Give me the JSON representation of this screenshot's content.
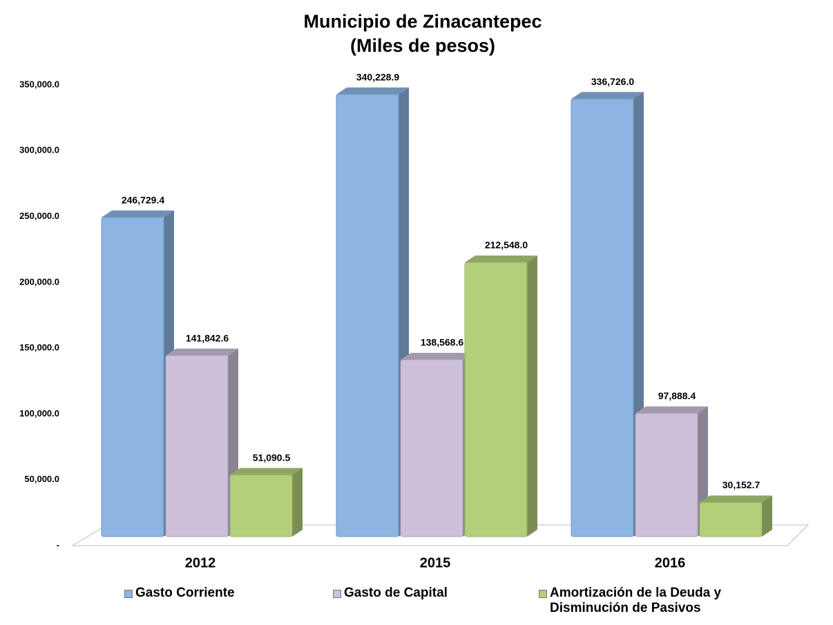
{
  "chart_data": {
    "type": "bar",
    "title": "Municipio de  Zinacantepec",
    "subtitle": "(Miles de pesos)",
    "categories": [
      "2012",
      "2015",
      "2016"
    ],
    "series": [
      {
        "name": "Gasto Corriente",
        "color": "#8db4e3",
        "values": [
          246729.4,
          340228.9,
          336726.0
        ],
        "value_labels": [
          "246,729.4",
          "340,228.9",
          "336,726.0"
        ]
      },
      {
        "name": "Gasto de Capital",
        "color": "#ccc0da",
        "values": [
          141842.6,
          138568.6,
          97888.4
        ],
        "value_labels": [
          "141,842.6",
          "138,568.6",
          "97,888.4"
        ]
      },
      {
        "name": "Amortización de la Deuda y Disminución de Pasivos",
        "color": "#b3cf7a",
        "values": [
          51090.5,
          212548.0,
          30152.7
        ],
        "value_labels": [
          "51,090.5",
          "212,548.0",
          "30,152.7"
        ]
      }
    ],
    "ylim": [
      0,
      350000
    ],
    "yticks": [
      {
        "value": 0,
        "label": "-"
      },
      {
        "value": 50000,
        "label": "50,000.0"
      },
      {
        "value": 100000,
        "label": "100,000.0"
      },
      {
        "value": 150000,
        "label": "150,000.0"
      },
      {
        "value": 200000,
        "label": "200,000.0"
      },
      {
        "value": 250000,
        "label": "250,000.0"
      },
      {
        "value": 300000,
        "label": "300,000.0"
      },
      {
        "value": 350000,
        "label": "350,000.0"
      }
    ],
    "grid": false,
    "legend": "bottom"
  }
}
